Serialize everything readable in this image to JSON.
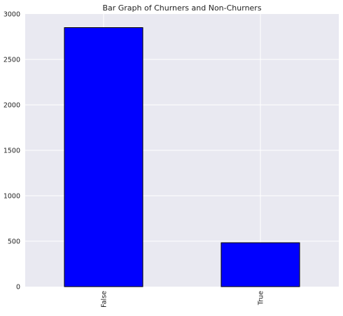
{
  "chart_data": {
    "type": "bar",
    "title": "Bar Graph of Churners and Non-Churners",
    "categories": [
      "False",
      "True"
    ],
    "values": [
      2850,
      483
    ],
    "xlabel": "",
    "ylabel": "",
    "ylim": [
      0,
      3000
    ],
    "yticks": [
      0,
      500,
      1000,
      1500,
      2000,
      2500,
      3000
    ],
    "ytick_labels": [
      "0",
      "500",
      "1000",
      "1500",
      "2000",
      "2500",
      "3000"
    ],
    "xtick_labels": [
      "False",
      "True"
    ],
    "grid": true,
    "legend": "none",
    "bar_color": "#0000ff",
    "background_color": "#e9e9f1",
    "grid_color": "#ffffff"
  }
}
